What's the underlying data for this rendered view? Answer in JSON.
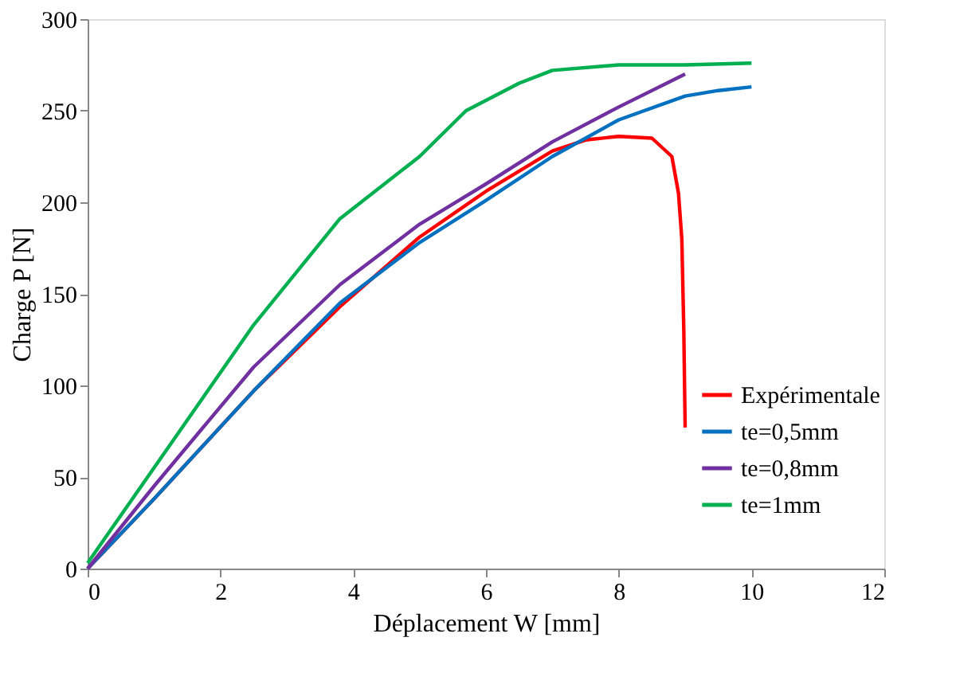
{
  "chart_data": {
    "type": "line",
    "xlabel": "Déplacement W [mm]",
    "ylabel": "Charge P [N]",
    "xlim": [
      0,
      12
    ],
    "xticks": [
      0,
      2,
      4,
      6,
      8,
      10,
      12
    ],
    "ylim": [
      0,
      300
    ],
    "yticks": [
      0,
      50,
      100,
      150,
      200,
      250,
      300
    ],
    "grid": false,
    "legend": "bottom right",
    "marker": "none",
    "line_style": "solid",
    "series": [
      {
        "name": "Expérimentale",
        "color": "#ff0000",
        "x": [
          0,
          1,
          2.5,
          3.8,
          5,
          6,
          7,
          7.5,
          8,
          8.5,
          8.8,
          8.9,
          8.95,
          8.98,
          9.0
        ],
        "values": [
          0,
          38,
          97,
          143,
          181,
          206,
          228,
          234,
          236,
          235,
          225,
          205,
          180,
          130,
          77
        ]
      },
      {
        "name": "te=0,5mm",
        "color": "#0070c0",
        "x": [
          0,
          1,
          2.5,
          3.8,
          5,
          6,
          7,
          8,
          9,
          9.5,
          10
        ],
        "values": [
          0,
          38,
          97,
          145,
          178,
          201,
          225,
          245,
          258,
          261,
          263
        ]
      },
      {
        "name": "te=0,8mm",
        "color": "#7030a0",
        "x": [
          0,
          1,
          2.5,
          3.8,
          5,
          6,
          7,
          8,
          9
        ],
        "values": [
          0,
          45,
          110,
          155,
          188,
          210,
          233,
          252,
          270
        ]
      },
      {
        "name": "te=1mm",
        "color": "#00b050",
        "x": [
          0,
          1,
          2.5,
          3.8,
          5,
          5.7,
          6.5,
          7,
          8,
          9,
          10
        ],
        "values": [
          3,
          55,
          133,
          191,
          225,
          250,
          265,
          272,
          275,
          275,
          276
        ]
      }
    ]
  }
}
